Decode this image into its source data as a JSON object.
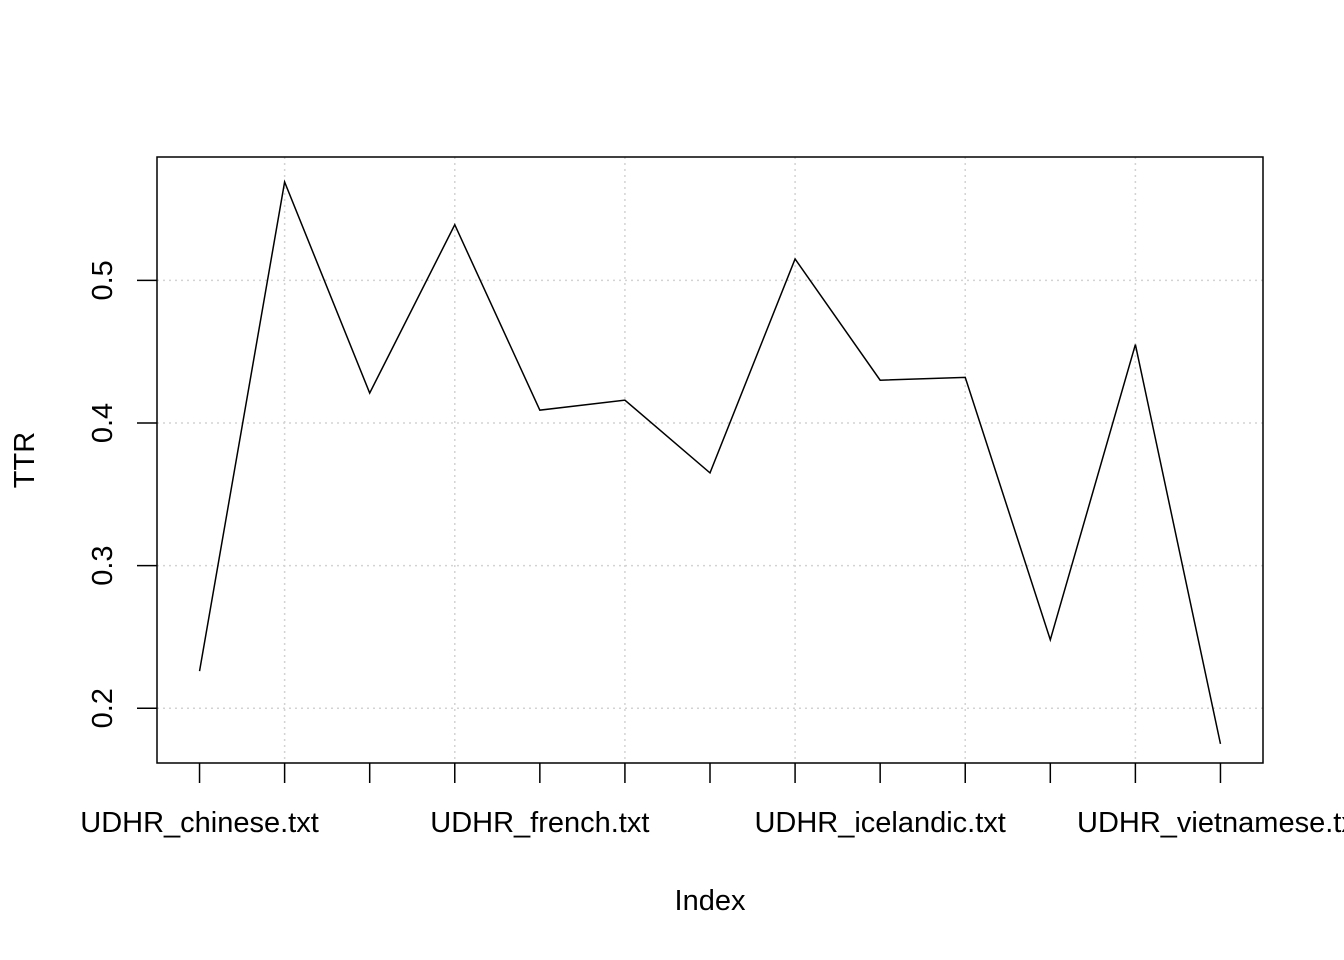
{
  "chart_data": {
    "type": "line",
    "title": "",
    "xlabel": "Index",
    "ylabel": "TTR",
    "x": [
      1,
      2,
      3,
      4,
      5,
      6,
      7,
      8,
      9,
      10,
      11,
      12,
      13
    ],
    "values": [
      0.226,
      0.569,
      0.421,
      0.539,
      0.409,
      0.416,
      0.365,
      0.515,
      0.43,
      0.432,
      0.248,
      0.455,
      0.175
    ],
    "x_tick_labels": [
      {
        "index": 1,
        "label": "UDHR_chinese.txt"
      },
      {
        "index": 5,
        "label": "UDHR_french.txt"
      },
      {
        "index": 9,
        "label": "UDHR_icelandic.txt"
      },
      {
        "index": 13,
        "label": "UDHR_vietnamese.txt"
      }
    ],
    "y_ticks": [
      0.2,
      0.3,
      0.4,
      0.5
    ],
    "y_tick_labels": [
      "0.2",
      "0.3",
      "0.4",
      "0.5"
    ],
    "xlim": [
      0.5,
      13.5
    ],
    "ylim": [
      0.1616,
      0.5865
    ],
    "grid": true,
    "grid_x_at": [
      2,
      4,
      6,
      8,
      10,
      12
    ],
    "grid_y_at": [
      0.2,
      0.3,
      0.4,
      0.5
    ],
    "line_color": "#000000",
    "grid_color": "#d3d3d3"
  }
}
